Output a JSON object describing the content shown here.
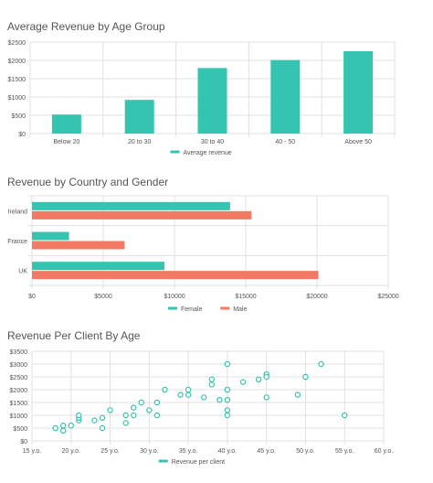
{
  "colors": {
    "teal": "#35c4b0",
    "salmon": "#f07a63",
    "grid": "#e1e1e1",
    "axis_text": "#555555",
    "title_text": "#555555"
  },
  "chart_data": [
    {
      "type": "bar",
      "title": "Average Revenue by Age Group",
      "categories": [
        "Below 20",
        "20 to 30",
        "30 to 40",
        "40 - 50",
        "Above 50"
      ],
      "series": [
        {
          "name": "Average revenue",
          "color": "#35c4b0",
          "values": [
            520,
            920,
            1790,
            2010,
            2250
          ]
        }
      ],
      "ylim": [
        0,
        2500
      ],
      "yticks": [
        0,
        500,
        1000,
        1500,
        2000,
        2500
      ],
      "ytick_labels": [
        "$0",
        "$500",
        "$1000",
        "$1500",
        "$2000",
        "$2500"
      ],
      "grid": true,
      "legend": "bottom"
    },
    {
      "type": "bar",
      "orientation": "horizontal",
      "title": "Revenue by Country and Gender",
      "categories": [
        "Ireland",
        "France",
        "UK"
      ],
      "series": [
        {
          "name": "Female",
          "color": "#35c4b0",
          "values": [
            13900,
            2600,
            9300
          ]
        },
        {
          "name": "Male",
          "color": "#f07a63",
          "values": [
            15400,
            6500,
            20100
          ]
        }
      ],
      "xlim": [
        0,
        25000
      ],
      "xticks": [
        0,
        5000,
        10000,
        15000,
        20000,
        25000
      ],
      "xtick_labels": [
        "$0",
        "$5000",
        "$10000",
        "$15000",
        "$20000",
        "$25000"
      ],
      "grid": true,
      "legend": "bottom"
    },
    {
      "type": "scatter",
      "title": "Revenue Per Client By Age",
      "series": [
        {
          "name": "Revenue per client",
          "color": "#35c4b0",
          "points": [
            [
              18,
              500
            ],
            [
              19,
              600
            ],
            [
              19,
              400
            ],
            [
              20,
              600
            ],
            [
              21,
              800
            ],
            [
              21,
              900
            ],
            [
              21,
              1000
            ],
            [
              23,
              800
            ],
            [
              24,
              900
            ],
            [
              24,
              500
            ],
            [
              25,
              1200
            ],
            [
              27,
              1000
            ],
            [
              27,
              700
            ],
            [
              28,
              1300
            ],
            [
              28,
              1000
            ],
            [
              29,
              1500
            ],
            [
              30,
              1200
            ],
            [
              31,
              1500
            ],
            [
              31,
              1000
            ],
            [
              32,
              2000
            ],
            [
              34,
              1800
            ],
            [
              35,
              2000
            ],
            [
              35,
              1800
            ],
            [
              37,
              1700
            ],
            [
              38,
              2400
            ],
            [
              38,
              2200
            ],
            [
              39,
              1600
            ],
            [
              40,
              3000
            ],
            [
              40,
              2000
            ],
            [
              40,
              1600
            ],
            [
              40,
              1200
            ],
            [
              40,
              1000
            ],
            [
              42,
              2300
            ],
            [
              44,
              2400
            ],
            [
              45,
              2600
            ],
            [
              45,
              2500
            ],
            [
              45,
              1700
            ],
            [
              49,
              1800
            ],
            [
              50,
              2500
            ],
            [
              52,
              3000
            ],
            [
              55,
              1000
            ]
          ]
        }
      ],
      "xlim": [
        15,
        60
      ],
      "xticks": [
        15,
        20,
        25,
        30,
        35,
        40,
        45,
        50,
        55,
        60
      ],
      "xtick_labels": [
        "15 y.o.",
        "20 y.o.",
        "25 y.o.",
        "30 y.o.",
        "35 y.o.",
        "40 y.o.",
        "45 y.o.",
        "50 y.o.",
        "55 y.o.",
        "60 y.o."
      ],
      "ylim": [
        0,
        3500
      ],
      "yticks": [
        0,
        500,
        1000,
        1500,
        2000,
        2500,
        3000,
        3500
      ],
      "ytick_labels": [
        "$0",
        "$500",
        "$1000",
        "$1500",
        "$2000",
        "$2500",
        "$3000",
        "$3500"
      ],
      "grid": true,
      "legend": "bottom"
    }
  ]
}
